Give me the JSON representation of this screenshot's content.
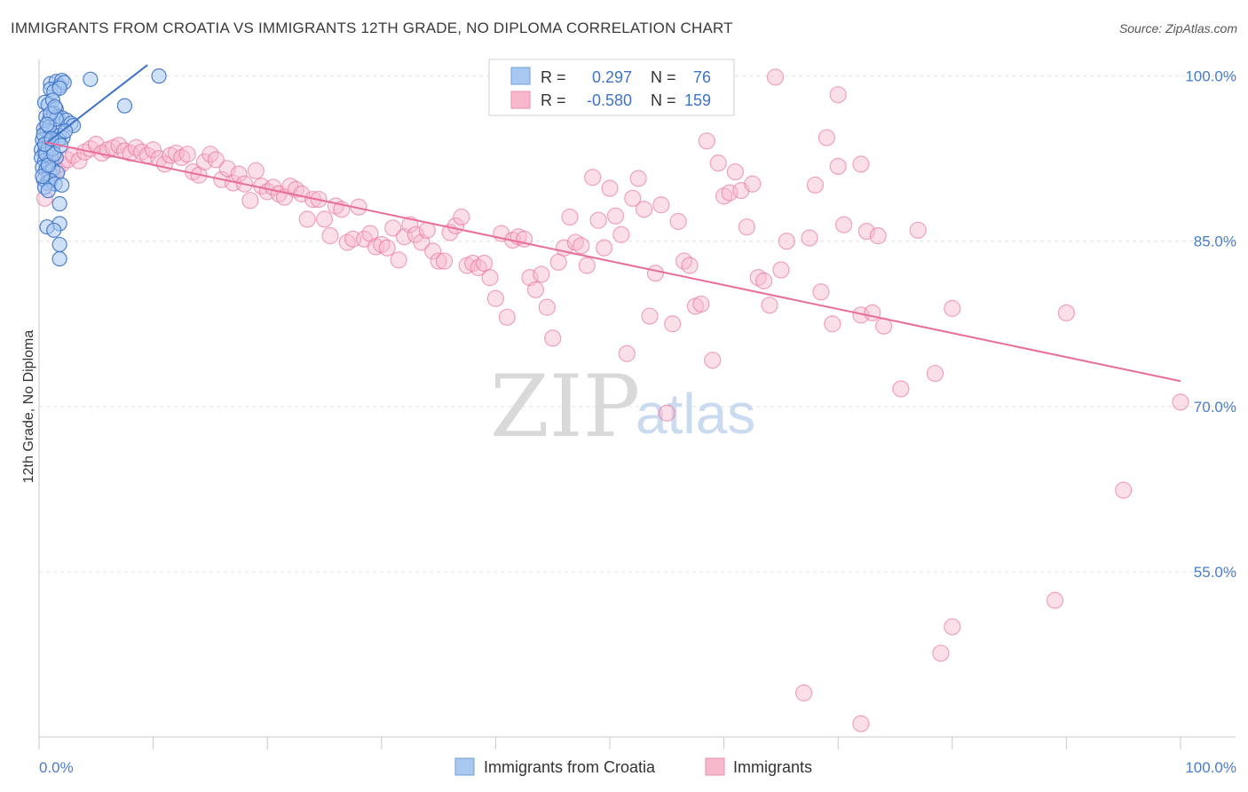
{
  "title": "IMMIGRANTS FROM CROATIA VS IMMIGRANTS 12TH GRADE, NO DIPLOMA CORRELATION CHART",
  "source": "Source: ZipAtlas.com",
  "watermark": {
    "zip": "ZIP",
    "atlas": "atlas"
  },
  "legend": {
    "r_label": "R =",
    "n_label": "N =",
    "rows": [
      {
        "r": "0.297",
        "n": "76",
        "color": "#a9c8f0"
      },
      {
        "r": "-0.580",
        "n": "159",
        "color": "#f7b8cc"
      }
    ]
  },
  "bottom_legend": [
    {
      "label": "Immigrants from Croatia",
      "color": "#a9c8f0"
    },
    {
      "label": "Immigrants",
      "color": "#f7b8cc"
    }
  ],
  "chart_data": {
    "type": "scatter",
    "ylabel": "12th Grade, No Diploma",
    "x_tick_labels": [
      "0.0%",
      "100.0%"
    ],
    "y_tick_labels": [
      "100.0%",
      "85.0%",
      "70.0%",
      "55.0%"
    ],
    "xlim": [
      0,
      100
    ],
    "ylim": [
      40,
      101.5
    ],
    "y_ticks": [
      100,
      85,
      70,
      55
    ],
    "grid": "horizontal dashed",
    "colors": {
      "croatia": "#3d73c8",
      "immigrants": "#e86d98",
      "croatia_fill": "#a9c8f0",
      "immigrants_fill": "#f7b8cc"
    },
    "trendlines": [
      {
        "series": 0,
        "x": [
          0.5,
          9.5
        ],
        "y": [
          93.8,
          101.0
        ]
      },
      {
        "series": 1,
        "x": [
          0.5,
          100
        ],
        "y": [
          94.0,
          72.3
        ]
      }
    ],
    "series": [
      {
        "points": [
          [
            1.0,
            99.3
          ],
          [
            1.5,
            99.5
          ],
          [
            1.8,
            99.1
          ],
          [
            2.0,
            99.6
          ],
          [
            2.2,
            99.4
          ],
          [
            4.5,
            99.7
          ],
          [
            10.5,
            100.0
          ],
          [
            1.0,
            98.8
          ],
          [
            1.3,
            98.6
          ],
          [
            1.8,
            98.9
          ],
          [
            0.5,
            97.6
          ],
          [
            0.8,
            97.4
          ],
          [
            1.2,
            97.8
          ],
          [
            1.5,
            97.0
          ],
          [
            7.5,
            97.3
          ],
          [
            0.6,
            96.3
          ],
          [
            0.9,
            96.0
          ],
          [
            1.3,
            96.6
          ],
          [
            1.6,
            96.3
          ],
          [
            2.0,
            96.2
          ],
          [
            2.4,
            96.0
          ],
          [
            2.8,
            95.7
          ],
          [
            3.0,
            95.5
          ],
          [
            0.4,
            95.2
          ],
          [
            0.7,
            95.0
          ],
          [
            1.0,
            94.9
          ],
          [
            1.4,
            95.1
          ],
          [
            1.8,
            94.6
          ],
          [
            2.1,
            94.4
          ],
          [
            0.3,
            94.2
          ],
          [
            0.6,
            93.9
          ],
          [
            0.9,
            94.0
          ],
          [
            1.2,
            93.6
          ],
          [
            0.2,
            93.3
          ],
          [
            0.5,
            93.1
          ],
          [
            0.8,
            93.5
          ],
          [
            1.1,
            93.0
          ],
          [
            0.2,
            92.6
          ],
          [
            0.5,
            92.3
          ],
          [
            0.8,
            92.1
          ],
          [
            1.1,
            92.4
          ],
          [
            1.5,
            92.6
          ],
          [
            0.3,
            91.7
          ],
          [
            0.6,
            91.5
          ],
          [
            0.9,
            91.3
          ],
          [
            1.2,
            91.5
          ],
          [
            1.6,
            91.2
          ],
          [
            0.4,
            90.6
          ],
          [
            0.7,
            90.3
          ],
          [
            1.0,
            90.5
          ],
          [
            1.4,
            90.2
          ],
          [
            2.0,
            90.1
          ],
          [
            0.5,
            89.9
          ],
          [
            0.8,
            89.6
          ],
          [
            1.8,
            88.4
          ],
          [
            1.8,
            86.6
          ],
          [
            0.7,
            86.3
          ],
          [
            1.3,
            86.0
          ],
          [
            1.8,
            84.7
          ],
          [
            1.8,
            83.4
          ],
          [
            0.4,
            94.7
          ],
          [
            0.9,
            95.4
          ],
          [
            1.5,
            96.1
          ],
          [
            0.6,
            92.9
          ],
          [
            1.2,
            93.4
          ],
          [
            1.7,
            94.2
          ],
          [
            0.3,
            90.9
          ],
          [
            0.8,
            91.9
          ],
          [
            1.3,
            92.9
          ],
          [
            0.5,
            93.8
          ],
          [
            1.0,
            96.6
          ],
          [
            1.4,
            97.2
          ],
          [
            2.3,
            95.0
          ],
          [
            0.7,
            95.6
          ],
          [
            1.1,
            94.3
          ],
          [
            1.9,
            93.7
          ]
        ]
      },
      {
        "points": [
          [
            0.5,
            88.9
          ],
          [
            0.8,
            90.4
          ],
          [
            1.2,
            91.2
          ],
          [
            1.6,
            91.5
          ],
          [
            2.0,
            92.0
          ],
          [
            2.5,
            92.4
          ],
          [
            3.0,
            92.8
          ],
          [
            3.5,
            92.3
          ],
          [
            4.0,
            93.1
          ],
          [
            4.5,
            93.4
          ],
          [
            5.0,
            93.8
          ],
          [
            5.5,
            93.0
          ],
          [
            6.0,
            93.3
          ],
          [
            6.5,
            93.5
          ],
          [
            7.0,
            93.7
          ],
          [
            7.5,
            93.2
          ],
          [
            8.0,
            93.0
          ],
          [
            8.5,
            93.5
          ],
          [
            9.0,
            93.1
          ],
          [
            9.5,
            92.8
          ],
          [
            10.0,
            93.3
          ],
          [
            10.5,
            92.5
          ],
          [
            11.0,
            92.0
          ],
          [
            11.5,
            92.8
          ],
          [
            12.0,
            93.0
          ],
          [
            12.5,
            92.6
          ],
          [
            13.0,
            92.9
          ],
          [
            13.5,
            91.3
          ],
          [
            14.0,
            91.0
          ],
          [
            14.5,
            92.2
          ],
          [
            15.0,
            92.9
          ],
          [
            15.5,
            92.4
          ],
          [
            16.0,
            90.6
          ],
          [
            16.5,
            91.6
          ],
          [
            17.0,
            90.3
          ],
          [
            17.5,
            91.1
          ],
          [
            18.0,
            90.2
          ],
          [
            18.5,
            88.7
          ],
          [
            19.0,
            91.4
          ],
          [
            19.5,
            90.0
          ],
          [
            20.0,
            89.5
          ],
          [
            20.5,
            89.9
          ],
          [
            21.0,
            89.3
          ],
          [
            21.5,
            89.0
          ],
          [
            22.0,
            90.0
          ],
          [
            22.5,
            89.7
          ],
          [
            23.0,
            89.3
          ],
          [
            23.5,
            87.0
          ],
          [
            24.0,
            88.8
          ],
          [
            24.5,
            88.8
          ],
          [
            25.0,
            87.0
          ],
          [
            25.5,
            85.5
          ],
          [
            26.0,
            88.2
          ],
          [
            26.5,
            87.9
          ],
          [
            27.0,
            84.9
          ],
          [
            27.5,
            85.2
          ],
          [
            28.0,
            88.1
          ],
          [
            28.5,
            85.2
          ],
          [
            29.0,
            85.7
          ],
          [
            29.5,
            84.5
          ],
          [
            30.0,
            84.7
          ],
          [
            30.5,
            84.4
          ],
          [
            31.0,
            86.2
          ],
          [
            31.5,
            83.3
          ],
          [
            32.0,
            85.4
          ],
          [
            32.5,
            86.5
          ],
          [
            33.0,
            85.6
          ],
          [
            33.5,
            84.9
          ],
          [
            34.0,
            86.0
          ],
          [
            34.5,
            84.1
          ],
          [
            35.0,
            83.2
          ],
          [
            35.5,
            83.2
          ],
          [
            36.0,
            85.8
          ],
          [
            36.5,
            86.4
          ],
          [
            37.0,
            87.2
          ],
          [
            37.5,
            82.8
          ],
          [
            38.0,
            83.0
          ],
          [
            38.5,
            82.6
          ],
          [
            39.0,
            83.0
          ],
          [
            39.5,
            81.7
          ],
          [
            40.0,
            79.8
          ],
          [
            40.5,
            85.7
          ],
          [
            41.0,
            78.1
          ],
          [
            41.5,
            85.1
          ],
          [
            42.0,
            85.4
          ],
          [
            42.5,
            85.2
          ],
          [
            43.0,
            81.7
          ],
          [
            43.5,
            80.6
          ],
          [
            44.0,
            82.0
          ],
          [
            44.5,
            79.0
          ],
          [
            45.0,
            76.2
          ],
          [
            45.5,
            83.1
          ],
          [
            46.0,
            84.4
          ],
          [
            46.5,
            87.2
          ],
          [
            47.0,
            84.9
          ],
          [
            47.5,
            84.6
          ],
          [
            48.0,
            82.8
          ],
          [
            48.5,
            90.8
          ],
          [
            49.0,
            86.9
          ],
          [
            49.5,
            84.4
          ],
          [
            50.0,
            89.8
          ],
          [
            50.5,
            87.3
          ],
          [
            51.0,
            85.6
          ],
          [
            51.5,
            74.8
          ],
          [
            52.0,
            88.9
          ],
          [
            52.5,
            90.7
          ],
          [
            53.0,
            87.9
          ],
          [
            53.5,
            78.2
          ],
          [
            54.0,
            82.1
          ],
          [
            54.5,
            88.3
          ],
          [
            55.0,
            69.4
          ],
          [
            55.5,
            77.5
          ],
          [
            56.0,
            86.8
          ],
          [
            56.5,
            83.2
          ],
          [
            57.0,
            82.8
          ],
          [
            57.5,
            79.1
          ],
          [
            58.0,
            79.3
          ],
          [
            58.5,
            94.1
          ],
          [
            59.0,
            74.2
          ],
          [
            59.5,
            92.1
          ],
          [
            60.0,
            89.1
          ],
          [
            60.5,
            89.4
          ],
          [
            61.0,
            91.3
          ],
          [
            61.5,
            89.6
          ],
          [
            62.0,
            86.3
          ],
          [
            62.5,
            90.2
          ],
          [
            63.0,
            81.7
          ],
          [
            63.5,
            81.4
          ],
          [
            64.0,
            79.2
          ],
          [
            64.5,
            99.9
          ],
          [
            65.0,
            82.4
          ],
          [
            65.5,
            85.0
          ],
          [
            67.5,
            85.3
          ],
          [
            68.0,
            90.1
          ],
          [
            68.5,
            80.4
          ],
          [
            69.0,
            94.4
          ],
          [
            69.5,
            77.5
          ],
          [
            70.0,
            91.8
          ],
          [
            70.5,
            86.5
          ],
          [
            72.0,
            78.3
          ],
          [
            72.5,
            85.9
          ],
          [
            73.0,
            78.5
          ],
          [
            73.5,
            85.5
          ],
          [
            74.0,
            77.3
          ],
          [
            75.5,
            71.6
          ],
          [
            77.0,
            86.0
          ],
          [
            78.5,
            73.0
          ],
          [
            80.0,
            78.9
          ],
          [
            90.0,
            78.5
          ],
          [
            70.0,
            98.3
          ],
          [
            72.0,
            92.0
          ],
          [
            100.0,
            70.4
          ],
          [
            95.0,
            62.4
          ],
          [
            89.0,
            52.4
          ],
          [
            80.0,
            50.0
          ],
          [
            79.0,
            47.6
          ],
          [
            67.0,
            44.0
          ],
          [
            72.0,
            41.2
          ],
          [
            1.0,
            92.4
          ]
        ]
      }
    ]
  }
}
